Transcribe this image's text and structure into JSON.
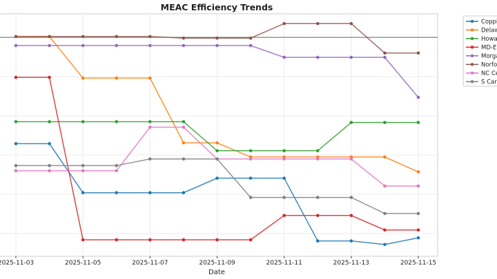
{
  "chart_data": {
    "type": "line",
    "title": "MEAC Efficiency Trends",
    "xlabel": "Date",
    "ylabel": "",
    "x": [
      "2025-11-03",
      "2025-11-04",
      "2025-11-05",
      "2025-11-06",
      "2025-11-07",
      "2025-11-08",
      "2025-11-09",
      "2025-11-10",
      "2025-11-11",
      "2025-11-12",
      "2025-11-13",
      "2025-11-14",
      "2025-11-15"
    ],
    "xticks": [
      "2025-11-03",
      "2025-11-05",
      "2025-11-07",
      "2025-11-09",
      "2025-11-11",
      "2025-11-13",
      "2025-11-15"
    ],
    "ylim": [
      -0.58,
      5.6
    ],
    "yticks_gridlines": [
      0,
      1,
      2,
      3,
      4,
      5
    ],
    "reference_line": 5.0,
    "grid": true,
    "legend_placement": "outside-top-right",
    "series": [
      {
        "name": "Coppi",
        "color": "#1f77b4",
        "values": [
          2.29,
          2.29,
          1.04,
          1.04,
          1.04,
          1.04,
          1.41,
          1.41,
          1.41,
          -0.19,
          -0.19,
          -0.28,
          -0.11
        ]
      },
      {
        "name": "Delaw",
        "color": "#ff7f0e",
        "values": [
          5.02,
          5.02,
          3.96,
          3.96,
          3.96,
          2.31,
          2.31,
          1.95,
          1.95,
          1.95,
          1.95,
          1.95,
          1.57
        ]
      },
      {
        "name": "Howa",
        "color": "#2ca02c",
        "values": [
          2.85,
          2.85,
          2.85,
          2.85,
          2.85,
          2.85,
          2.11,
          2.11,
          2.11,
          2.11,
          2.83,
          2.83,
          2.83
        ]
      },
      {
        "name": "MD-E",
        "color": "#d62728",
        "values": [
          3.98,
          3.98,
          -0.16,
          -0.16,
          -0.16,
          -0.16,
          -0.16,
          -0.16,
          0.46,
          0.46,
          0.46,
          0.09,
          0.09
        ]
      },
      {
        "name": "Morga",
        "color": "#9467bd",
        "values": [
          4.79,
          4.79,
          4.79,
          4.79,
          4.79,
          4.79,
          4.79,
          4.79,
          4.49,
          4.49,
          4.49,
          4.49,
          3.47
        ]
      },
      {
        "name": "Norfo",
        "color": "#8c564b",
        "values": [
          5.02,
          5.02,
          5.02,
          5.02,
          5.02,
          4.98,
          4.98,
          4.98,
          5.35,
          5.35,
          5.35,
          4.6,
          4.6
        ]
      },
      {
        "name": "NC Ce",
        "color": "#e377c2",
        "values": [
          1.6,
          1.6,
          1.6,
          1.6,
          2.71,
          2.71,
          1.9,
          1.9,
          1.9,
          1.9,
          1.9,
          1.21,
          1.21
        ]
      },
      {
        "name": "S Car",
        "color": "#7f7f7f",
        "values": [
          1.73,
          1.73,
          1.73,
          1.73,
          1.9,
          1.9,
          1.9,
          0.92,
          0.92,
          0.92,
          0.92,
          0.51,
          0.51
        ]
      }
    ]
  }
}
